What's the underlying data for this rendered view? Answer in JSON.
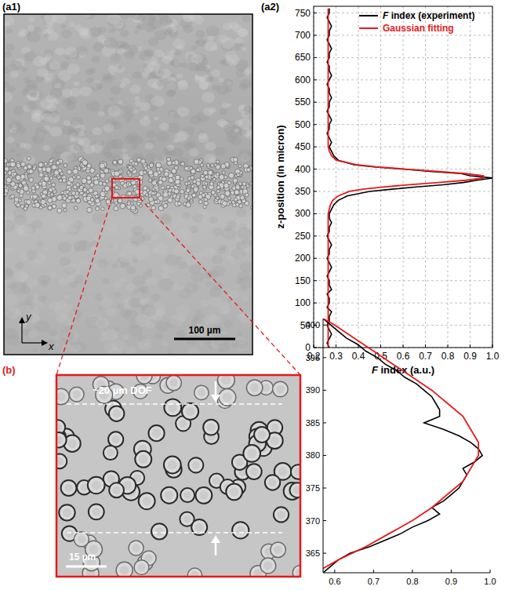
{
  "panel_labels": {
    "a1": "(a1)",
    "a2": "(a2)",
    "b": "(b)"
  },
  "image_a1": {
    "scale_bar": "100 µm",
    "axis_y": "y",
    "axis_x": "x"
  },
  "image_b": {
    "dof": "~20 µm DOF",
    "scale_bar": "15 µm"
  },
  "chart_data": [
    {
      "type": "line",
      "y_label": "z-position (in micron)",
      "x_label": "F index (a.u.)",
      "xlim": [
        0.2,
        1.0
      ],
      "xticks": [
        0.2,
        0.3,
        0.4,
        0.5,
        0.6,
        0.7,
        0.8,
        0.9,
        {
          "value": 1,
          "label": "1.0"
        }
      ],
      "ylim": [
        0,
        765
      ],
      "yticks": [
        0,
        50,
        100,
        150,
        200,
        250,
        300,
        350,
        400,
        450,
        500,
        550,
        600,
        650,
        700,
        750
      ],
      "grid": true,
      "legend": "top-right",
      "series": [
        {
          "name": "F index (experiment)",
          "color": "#000000",
          "x": [
            0.27,
            0.26,
            0.27,
            0.28,
            0.27,
            0.26,
            0.27,
            0.27,
            0.28,
            0.26,
            0.27,
            0.27,
            0.26,
            0.28,
            0.27,
            0.27,
            0.26,
            0.27,
            0.28,
            0.27,
            0.26,
            0.27,
            0.27,
            0.28,
            0.27,
            0.26,
            0.27,
            0.27,
            0.28,
            0.27,
            0.27,
            0.28,
            0.29,
            0.31,
            0.35,
            0.45,
            0.55,
            0.66,
            0.78,
            0.87,
            0.93,
            1.0,
            0.9,
            0.86,
            0.72,
            0.6,
            0.47,
            0.38,
            0.31,
            0.29,
            0.28,
            0.27,
            0.28,
            0.27,
            0.26,
            0.27,
            0.27,
            0.28,
            0.27,
            0.26,
            0.27,
            0.27,
            0.28,
            0.27,
            0.27,
            0.26,
            0.27,
            0.28,
            0.27,
            0.27,
            0.26,
            0.27,
            0.27,
            0.28,
            0.27,
            0.26,
            0.27,
            0.27,
            0.28,
            0.27,
            0.26,
            0.27,
            0.27
          ],
          "values": [
            0,
            10,
            20,
            30,
            40,
            50,
            60,
            70,
            80,
            90,
            100,
            110,
            120,
            130,
            140,
            150,
            160,
            170,
            180,
            190,
            200,
            210,
            220,
            230,
            240,
            250,
            260,
            270,
            280,
            290,
            300,
            310,
            320,
            330,
            340,
            350,
            355,
            360,
            365,
            370,
            375,
            380,
            385,
            390,
            395,
            400,
            405,
            410,
            420,
            430,
            440,
            450,
            460,
            470,
            480,
            490,
            500,
            510,
            520,
            530,
            540,
            550,
            560,
            570,
            580,
            590,
            600,
            610,
            620,
            630,
            640,
            650,
            660,
            670,
            680,
            690,
            700,
            710,
            720,
            730,
            740,
            750,
            760
          ]
        },
        {
          "name": "Gaussian fitting",
          "color": "#e41a1c",
          "x": [
            0.265,
            0.265,
            0.265,
            0.265,
            0.265,
            0.265,
            0.265,
            0.27,
            0.275,
            0.285,
            0.31,
            0.36,
            0.42,
            0.51,
            0.63,
            0.76,
            0.88,
            0.96,
            0.96,
            0.88,
            0.75,
            0.61,
            0.48,
            0.39,
            0.3,
            0.28,
            0.27,
            0.265,
            0.265,
            0.265,
            0.265,
            0.265,
            0.265,
            0.265,
            0.265
          ],
          "values": [
            0,
            50,
            100,
            150,
            200,
            250,
            300,
            310,
            320,
            330,
            340,
            350,
            355,
            360,
            365,
            370,
            375,
            380,
            385,
            390,
            395,
            400,
            405,
            410,
            420,
            430,
            440,
            450,
            500,
            550,
            600,
            650,
            700,
            750,
            760
          ]
        }
      ]
    },
    {
      "type": "line",
      "xlim": [
        0.57,
        1.0
      ],
      "xticks": [
        0.6,
        0.7,
        0.8,
        0.9,
        {
          "value": 1,
          "label": "1.0"
        }
      ],
      "ylim": [
        362,
        401
      ],
      "yticks": [
        365,
        370,
        375,
        380,
        385,
        390,
        395,
        400
      ],
      "grid": false,
      "series": [
        {
          "color": "#000000",
          "x": [
            0.57,
            0.59,
            0.61,
            0.63,
            0.66,
            0.68,
            0.71,
            0.73,
            0.76,
            0.78,
            0.81,
            0.83,
            0.85,
            0.86,
            0.87,
            0.87,
            0.83,
            0.88,
            0.92,
            0.95,
            0.97,
            0.98,
            0.96,
            0.93,
            0.94,
            0.93,
            0.92,
            0.9,
            0.88,
            0.85,
            0.87,
            0.84,
            0.8,
            0.77,
            0.73,
            0.69,
            0.64,
            0.61,
            0.59,
            0.57
          ],
          "values": [
            401,
            400,
            399,
            398,
            397,
            396,
            395,
            394,
            393,
            392,
            391,
            390,
            389,
            388,
            387,
            386,
            385,
            384,
            383,
            382,
            381,
            380,
            379,
            378,
            377,
            376,
            375,
            374,
            373,
            372,
            371,
            370,
            369,
            368,
            367,
            366,
            365,
            364,
            363,
            362
          ]
        },
        {
          "color": "#e41a1c",
          "x": [
            0.57,
            0.6,
            0.65,
            0.7,
            0.75,
            0.8,
            0.85,
            0.89,
            0.93,
            0.95,
            0.97,
            0.97,
            0.97,
            0.95,
            0.93,
            0.89,
            0.85,
            0.8,
            0.74,
            0.68,
            0.61,
            0.55
          ],
          "values": [
            401,
            400,
            398,
            396,
            394,
            392,
            390,
            388,
            386,
            384,
            382,
            381,
            380,
            378,
            376,
            374,
            372,
            370,
            368,
            366,
            364,
            362
          ]
        }
      ]
    }
  ]
}
